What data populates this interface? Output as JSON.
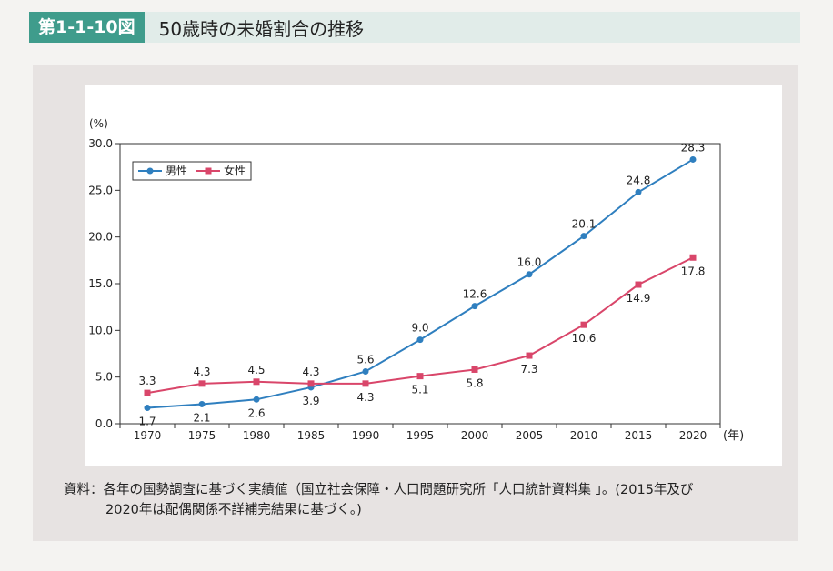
{
  "header": {
    "figure_label": "第1-1-10図",
    "title": "50歳時の未婚割合の推移"
  },
  "source": {
    "line1": "資料：各年の国勢調査に基づく実績値（国立社会保障・人口問題研究所「人口統計資料集 」。(2015年及び",
    "line2": "2020年は配偶関係不詳補完結果に基づく。)"
  },
  "colors": {
    "male": "#2f7fbf",
    "female": "#d9466a"
  },
  "chart_data": {
    "type": "line",
    "y_unit_label": "(%)",
    "x_unit_label": "(年)",
    "categories": [
      "1970",
      "1975",
      "1980",
      "1985",
      "1990",
      "1995",
      "2000",
      "2005",
      "2010",
      "2015",
      "2020"
    ],
    "ylim": [
      0,
      30
    ],
    "yticks": [
      "0.0",
      "5.0",
      "10.0",
      "15.0",
      "20.0",
      "25.0",
      "30.0"
    ],
    "legend_position": "top-left",
    "series": [
      {
        "name": "男性",
        "values": [
          1.7,
          2.1,
          2.6,
          3.9,
          5.6,
          9.0,
          12.6,
          16.0,
          20.1,
          24.8,
          28.3
        ],
        "labels": [
          "1.7",
          "2.1",
          "2.6",
          "3.9",
          "5.6",
          "9.0",
          "12.6",
          "16.0",
          "20.1",
          "24.8",
          "28.3"
        ]
      },
      {
        "name": "女性",
        "values": [
          3.3,
          4.3,
          4.5,
          4.3,
          4.3,
          5.1,
          5.8,
          7.3,
          10.6,
          14.9,
          17.8
        ],
        "labels": [
          "3.3",
          "4.3",
          "4.5",
          "4.3",
          "4.3",
          "5.1",
          "5.8",
          "7.3",
          "10.6",
          "14.9",
          "17.8"
        ]
      }
    ]
  }
}
